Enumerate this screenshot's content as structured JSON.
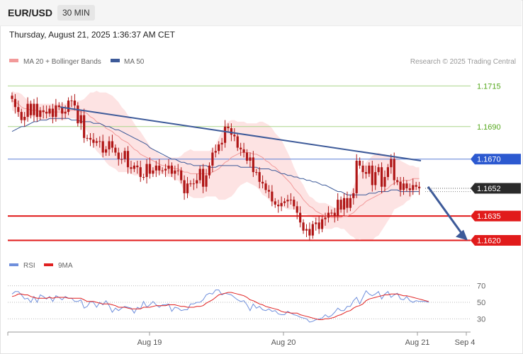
{
  "header": {
    "symbol": "EUR/USD",
    "interval": "30 MIN",
    "datetime": "Thursday, August 21, 2025 1:36:37 AM CET"
  },
  "legend": {
    "ma20_label": "MA 20 + Bollinger Bands",
    "ma50_label": "MA 50",
    "credit": "Research © 2025 Trading Central",
    "rsi_label": "RSI",
    "rsi_ma_label": "9MA"
  },
  "colors": {
    "ma20": "#f29a9a",
    "ma50": "#3d5a99",
    "bands_fill": "#fde3e3",
    "candle": "#b01616",
    "trendline": "#3d5a99",
    "level_green": "#aad58a",
    "level_blue": "#5b7fd6",
    "level_red": "#e11b1b",
    "rsi": "#6f8fdc",
    "rsi_ma": "#e02020"
  },
  "chart_data": [
    {
      "type": "candlestick",
      "title": "EUR/USD",
      "interval": "30 MIN",
      "ylim": [
        1.1615,
        1.1723
      ],
      "x_labels": [
        "Aug 19",
        "Aug 20",
        "Aug 21",
        "Sep 4"
      ],
      "levels": [
        {
          "value": 1.1715,
          "label": "1.1715",
          "color": "#56a81e"
        },
        {
          "value": 1.169,
          "label": "1.1690",
          "color": "#56a81e"
        },
        {
          "value": 1.167,
          "label": "1.1670",
          "color": "#2c59d0"
        },
        {
          "value": 1.1635,
          "label": "1.1635",
          "color": "#e11b1b"
        },
        {
          "value": 1.162,
          "label": "1.1620",
          "color": "#e11b1b"
        }
      ],
      "last_price": {
        "value": 1.1652,
        "label": "1.1652"
      },
      "close": [
        1.1707,
        1.1702,
        1.1699,
        1.1694,
        1.1696,
        1.1704,
        1.1697,
        1.1704,
        1.1696,
        1.17,
        1.1699,
        1.1698,
        1.1701,
        1.1696,
        1.1703,
        1.1702,
        1.1698,
        1.1699,
        1.1706,
        1.1706,
        1.1703,
        1.1692,
        1.1697,
        1.1683,
        1.1683,
        1.1682,
        1.168,
        1.1681,
        1.1681,
        1.1674,
        1.1676,
        1.1681,
        1.1677,
        1.1674,
        1.167,
        1.167,
        1.1675,
        1.1665,
        1.1664,
        1.1666,
        1.1665,
        1.1659,
        1.1659,
        1.1667,
        1.1661,
        1.1663,
        1.1666,
        1.1663,
        1.1663,
        1.1664,
        1.1666,
        1.1661,
        1.1663,
        1.1663,
        1.1657,
        1.1649,
        1.1655,
        1.1655,
        1.1655,
        1.1657,
        1.1664,
        1.1653,
        1.166,
        1.1666,
        1.1674,
        1.1675,
        1.1679,
        1.168,
        1.169,
        1.1689,
        1.1685,
        1.1684,
        1.1677,
        1.1676,
        1.1674,
        1.1669,
        1.1671,
        1.1662,
        1.1662,
        1.1656,
        1.1655,
        1.1651,
        1.165,
        1.1644,
        1.1642,
        1.1641,
        1.1643,
        1.1644,
        1.1645,
        1.1645,
        1.1641,
        1.1637,
        1.1631,
        1.1626,
        1.1627,
        1.1623,
        1.163,
        1.1631,
        1.1627,
        1.1633,
        1.1634,
        1.1637,
        1.1637,
        1.1635,
        1.1645,
        1.1639,
        1.1646,
        1.164,
        1.1646,
        1.1649,
        1.1669,
        1.1666,
        1.1662,
        1.1661,
        1.1666,
        1.1654,
        1.1662,
        1.1665,
        1.1653,
        1.1659,
        1.1665,
        1.167,
        1.1657,
        1.1656,
        1.1651,
        1.1655,
        1.1652,
        1.1651,
        1.1654,
        1.1653,
        1.1652
      ],
      "ma20": [
        1.1706,
        1.1705,
        1.1704,
        1.1702,
        1.1701,
        1.1701,
        1.17,
        1.17,
        1.17,
        1.1699,
        1.1699,
        1.1699,
        1.1699,
        1.1699,
        1.1699,
        1.1699,
        1.1699,
        1.1699,
        1.17,
        1.17,
        1.17,
        1.17,
        1.1699,
        1.1699,
        1.1698,
        1.1696,
        1.1695,
        1.1693,
        1.1692,
        1.1691,
        1.1689,
        1.1688,
        1.1687,
        1.1685,
        1.1684,
        1.1682,
        1.1681,
        1.168,
        1.1678,
        1.1676,
        1.1675,
        1.1673,
        1.1672,
        1.1671,
        1.167,
        1.1669,
        1.1668,
        1.1667,
        1.1666,
        1.1666,
        1.1665,
        1.1665,
        1.1664,
        1.1664,
        1.1663,
        1.1662,
        1.1662,
        1.1661,
        1.1661,
        1.1661,
        1.1661,
        1.1661,
        1.1661,
        1.1661,
        1.1662,
        1.1663,
        1.1664,
        1.1666,
        1.1668,
        1.1669,
        1.1671,
        1.1672,
        1.1673,
        1.1674,
        1.1674,
        1.1674,
        1.1674,
        1.1673,
        1.1673,
        1.1672,
        1.1671,
        1.1669,
        1.1668,
        1.1666,
        1.1665,
        1.1663,
        1.1661,
        1.1659,
        1.1657,
        1.1655,
        1.1652,
        1.165,
        1.1648,
        1.1645,
        1.1643,
        1.1641,
        1.164,
        1.1638,
        1.1637,
        1.1636,
        1.1635,
        1.1635,
        1.1634,
        1.1634,
        1.1634,
        1.1634,
        1.1635,
        1.1635,
        1.1636,
        1.1637,
        1.1639,
        1.1641,
        1.1642,
        1.1644,
        1.1645,
        1.1646,
        1.1647,
        1.1648,
        1.1649,
        1.1651,
        1.1652,
        1.1654,
        1.1655,
        1.1656,
        1.1656,
        1.1657,
        1.1657,
        1.1657,
        1.1658,
        1.1658,
        1.1658
      ],
      "upper_band": [
        1.1712,
        1.1711,
        1.1711,
        1.171,
        1.1708,
        1.1706,
        1.1705,
        1.1704,
        1.1704,
        1.1704,
        1.1704,
        1.1704,
        1.1704,
        1.1704,
        1.1704,
        1.1704,
        1.1704,
        1.1704,
        1.1705,
        1.1705,
        1.1706,
        1.1706,
        1.1706,
        1.1707,
        1.1709,
        1.1711,
        1.1711,
        1.1712,
        1.1711,
        1.1711,
        1.1711,
        1.171,
        1.1709,
        1.1707,
        1.1705,
        1.1702,
        1.17,
        1.1697,
        1.1695,
        1.1692,
        1.1689,
        1.1687,
        1.1684,
        1.1681,
        1.1678,
        1.1676,
        1.1675,
        1.1673,
        1.1672,
        1.1672,
        1.1671,
        1.1671,
        1.1671,
        1.1671,
        1.1672,
        1.1674,
        1.1675,
        1.1676,
        1.1675,
        1.1675,
        1.1675,
        1.1675,
        1.1675,
        1.1675,
        1.1676,
        1.1679,
        1.1683,
        1.1687,
        1.1691,
        1.1693,
        1.1694,
        1.1694,
        1.1693,
        1.1693,
        1.1693,
        1.1692,
        1.1692,
        1.1692,
        1.1692,
        1.1693,
        1.1693,
        1.1692,
        1.1691,
        1.1689,
        1.1686,
        1.1684,
        1.1682,
        1.1678,
        1.1674,
        1.167,
        1.1665,
        1.1661,
        1.1657,
        1.1654,
        1.165,
        1.1647,
        1.1646,
        1.1644,
        1.1643,
        1.1643,
        1.1643,
        1.1642,
        1.1641,
        1.164,
        1.164,
        1.164,
        1.1643,
        1.1645,
        1.1649,
        1.1653,
        1.1658,
        1.1662,
        1.1665,
        1.1668,
        1.167,
        1.1672,
        1.1673,
        1.1674,
        1.1673,
        1.1673,
        1.1672,
        1.1672,
        1.1671,
        1.1671,
        1.1669,
        1.1668,
        1.1667,
        1.1666,
        1.1666,
        1.1665,
        1.1665
      ],
      "lower_band": [
        1.17,
        1.1699,
        1.1697,
        1.1694,
        1.1693,
        1.1695,
        1.1696,
        1.1696,
        1.1695,
        1.1694,
        1.1694,
        1.1694,
        1.1694,
        1.1694,
        1.1694,
        1.1694,
        1.1694,
        1.1694,
        1.1695,
        1.1695,
        1.1695,
        1.1693,
        1.1693,
        1.169,
        1.1687,
        1.1682,
        1.1678,
        1.1675,
        1.1673,
        1.1671,
        1.1668,
        1.1666,
        1.1665,
        1.1664,
        1.1662,
        1.1662,
        1.1662,
        1.1662,
        1.1661,
        1.166,
        1.166,
        1.166,
        1.166,
        1.1661,
        1.1662,
        1.1662,
        1.1661,
        1.1661,
        1.1661,
        1.166,
        1.1659,
        1.1659,
        1.1657,
        1.1657,
        1.1654,
        1.165,
        1.1648,
        1.1647,
        1.1646,
        1.1646,
        1.1646,
        1.1646,
        1.1647,
        1.1647,
        1.1647,
        1.1647,
        1.1645,
        1.1645,
        1.1645,
        1.1646,
        1.1647,
        1.1649,
        1.1652,
        1.1654,
        1.1655,
        1.1656,
        1.1655,
        1.1654,
        1.1653,
        1.1651,
        1.1648,
        1.1647,
        1.1645,
        1.1643,
        1.1643,
        1.1643,
        1.1641,
        1.164,
        1.1639,
        1.1639,
        1.1639,
        1.1639,
        1.1638,
        1.1636,
        1.1636,
        1.1635,
        1.1634,
        1.1633,
        1.1631,
        1.1629,
        1.1627,
        1.1627,
        1.1627,
        1.1628,
        1.1628,
        1.1627,
        1.1627,
        1.1625,
        1.1623,
        1.1622,
        1.162,
        1.1621,
        1.162,
        1.162,
        1.162,
        1.162,
        1.1622,
        1.1623,
        1.1626,
        1.1629,
        1.1632,
        1.1635,
        1.1639,
        1.164,
        1.1641,
        1.1642,
        1.1644,
        1.1645,
        1.1649,
        1.165,
        1.1651
      ],
      "ma50": [
        1.1687,
        1.1688,
        1.1689,
        1.169,
        1.169,
        1.1691,
        1.1692,
        1.1693,
        1.1693,
        1.1694,
        1.1694,
        1.1694,
        1.1695,
        1.1695,
        1.1695,
        1.1695,
        1.1695,
        1.1695,
        1.1695,
        1.1694,
        1.1694,
        1.1694,
        1.1693,
        1.1693,
        1.1693,
        1.1693,
        1.1692,
        1.1692,
        1.1692,
        1.1691,
        1.169,
        1.169,
        1.1689,
        1.1688,
        1.1688,
        1.1687,
        1.1686,
        1.1685,
        1.1684,
        1.1683,
        1.1682,
        1.1681,
        1.168,
        1.1679,
        1.1677,
        1.1676,
        1.1675,
        1.1674,
        1.1673,
        1.1672,
        1.1671,
        1.167,
        1.167,
        1.1669,
        1.1668,
        1.1668,
        1.1667,
        1.1667,
        1.1666,
        1.1666,
        1.1666,
        1.1666,
        1.1666,
        1.1665,
        1.1665,
        1.1665,
        1.1666,
        1.1666,
        1.1666,
        1.1666,
        1.1666,
        1.1666,
        1.1666,
        1.1665,
        1.1665,
        1.1665,
        1.1665,
        1.1665,
        1.1665,
        1.1664,
        1.1664,
        1.1664,
        1.1664,
        1.1663,
        1.1663,
        1.1662,
        1.1661,
        1.1661,
        1.166,
        1.166,
        1.1659,
        1.1659,
        1.1658,
        1.1658,
        1.1657,
        1.1657,
        1.1656,
        1.1656,
        1.1655,
        1.1654,
        1.1654,
        1.1653,
        1.1652,
        1.1651,
        1.165,
        1.165,
        1.1649,
        1.1648,
        1.1648,
        1.1648,
        1.1648,
        1.1648,
        1.1648,
        1.1648,
        1.1649,
        1.1649,
        1.1649,
        1.165,
        1.165,
        1.165,
        1.165,
        1.1651,
        1.1651,
        1.1651,
        1.165,
        1.165,
        1.165,
        1.165,
        1.165,
        1.165,
        1.165
      ]
    },
    {
      "type": "line",
      "title": "RSI",
      "ylim": [
        20,
        80
      ],
      "y_ticks": [
        30,
        50,
        70
      ],
      "series": [
        {
          "name": "RSI",
          "values": [
            60,
            63,
            63,
            59,
            54,
            55,
            50,
            57,
            50,
            59,
            57,
            54,
            57,
            51,
            58,
            56,
            53,
            57,
            55,
            55,
            51,
            51,
            53,
            43,
            45,
            51,
            50,
            44,
            50,
            47,
            52,
            46,
            38,
            43,
            40,
            43,
            45,
            44,
            43,
            37,
            44,
            42,
            51,
            44,
            47,
            51,
            47,
            44,
            47,
            47,
            48,
            39,
            44,
            43,
            40,
            41,
            41,
            48,
            48,
            50,
            50,
            53,
            59,
            61,
            60,
            65,
            65,
            59,
            61,
            60,
            59,
            56,
            53,
            51,
            52,
            47,
            40,
            48,
            43,
            45,
            41,
            40,
            42,
            39,
            40,
            36,
            35,
            35,
            39,
            37,
            35,
            34,
            32,
            31,
            30,
            26,
            27,
            29,
            30,
            31,
            35,
            32,
            34,
            38,
            43,
            40,
            40,
            45,
            45,
            52,
            56,
            48,
            56,
            64,
            60,
            58,
            60,
            63,
            54,
            60,
            63,
            56,
            59,
            61,
            54,
            53,
            57,
            52,
            50,
            52,
            51,
            51,
            51,
            50
          ]
        },
        {
          "name": "9MA",
          "values": [
            57,
            58,
            60,
            60,
            59,
            59,
            57,
            56,
            55,
            55,
            55,
            55,
            56,
            55,
            56,
            56,
            56,
            56,
            55,
            55,
            55,
            55,
            55,
            53,
            51,
            51,
            51,
            50,
            49,
            48,
            48,
            48,
            47,
            46,
            44,
            44,
            44,
            43,
            42,
            42,
            42,
            42,
            44,
            44,
            44,
            45,
            46,
            46,
            46,
            46,
            47,
            47,
            47,
            46,
            45,
            45,
            44,
            44,
            44,
            45,
            45,
            46,
            49,
            51,
            53,
            56,
            59,
            60,
            61,
            62,
            62,
            61,
            60,
            59,
            58,
            56,
            53,
            52,
            50,
            48,
            47,
            45,
            44,
            43,
            42,
            41,
            39,
            38,
            38,
            37,
            37,
            37,
            35,
            34,
            33,
            32,
            31,
            30,
            29,
            29,
            30,
            30,
            31,
            32,
            34,
            35,
            37,
            39,
            40,
            43,
            45,
            46,
            48,
            52,
            54,
            55,
            56,
            57,
            58,
            59,
            59,
            60,
            60,
            60,
            59,
            58,
            58,
            57,
            56,
            55,
            54,
            53,
            52,
            51
          ]
        }
      ]
    }
  ]
}
